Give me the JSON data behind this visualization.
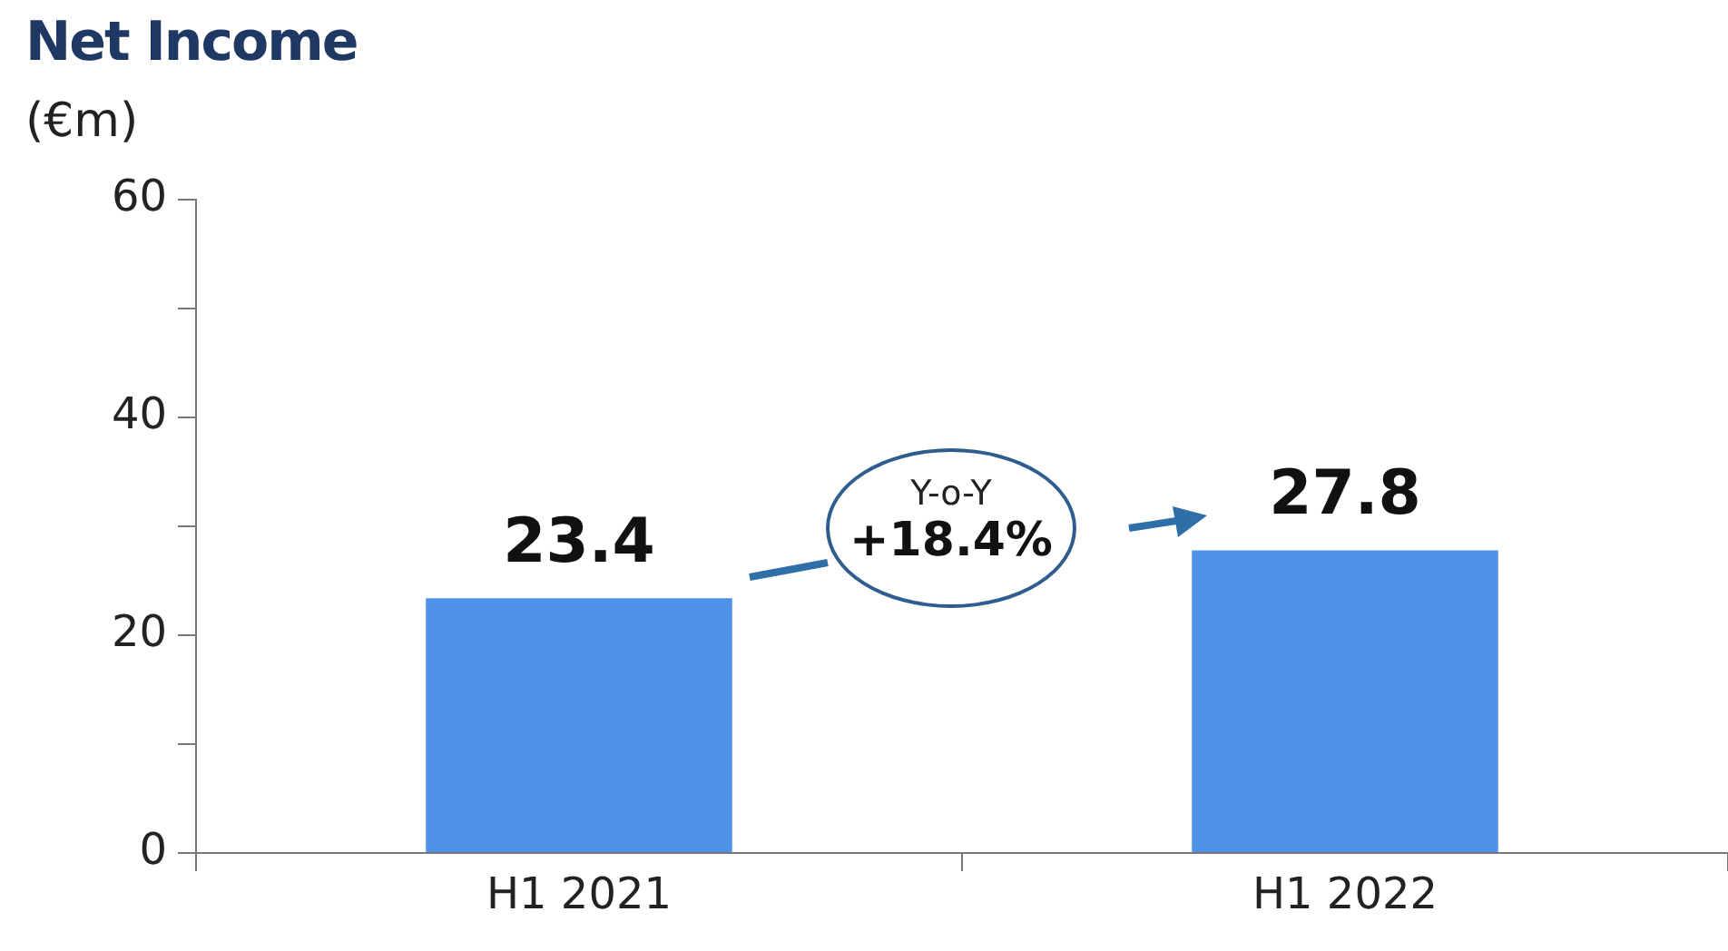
{
  "chart_data": {
    "type": "bar",
    "title": "Net Income",
    "ylabel": "(€m)",
    "categories": [
      "H1 2021",
      "H1 2022"
    ],
    "values": [
      23.4,
      27.8
    ],
    "color": "#4f93e8",
    "ylim": [
      0,
      60
    ],
    "yticks": [
      0,
      {
        "value": 10,
        "label": null
      },
      20,
      {
        "value": 30,
        "label": null
      },
      40,
      {
        "value": 50,
        "label": null
      },
      60
    ],
    "data_labels": true,
    "grid": false,
    "legend": false,
    "annotations": [
      "Y-o-Y",
      "+18.4%"
    ]
  }
}
